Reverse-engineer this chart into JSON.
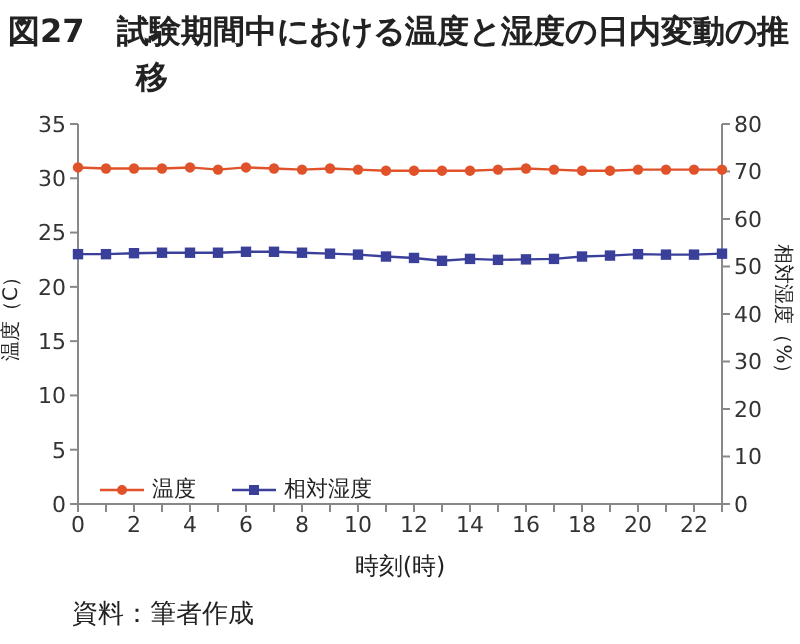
{
  "chart_data": {
    "type": "line",
    "title": "図27　試験期間中における温度と湿度の日内変動の推移",
    "xlabel": "時刻(時)",
    "ylabel": "温度（C）",
    "y2label": "相対湿度（%）",
    "categories": [
      "0",
      null,
      "2",
      null,
      "4",
      null,
      "6",
      null,
      "8",
      null,
      "10",
      null,
      "12",
      null,
      "14",
      null,
      "16",
      null,
      "18",
      null,
      "20",
      null,
      "22",
      null
    ],
    "series": [
      {
        "name": "温度",
        "color": "#e0522a",
        "marker": "circle",
        "values": [
          31.0,
          30.9,
          30.9,
          30.9,
          31.0,
          30.8,
          31.0,
          30.9,
          30.8,
          30.9,
          30.8,
          30.7,
          30.7,
          30.7,
          30.7,
          30.8,
          30.9,
          30.8,
          30.7,
          30.7,
          30.8,
          30.8,
          30.8,
          30.8
        ]
      },
      {
        "name": "相対湿度",
        "color": "#3a3f9a",
        "marker": "square",
        "axis": "y2",
        "values": [
          52.6,
          52.6,
          52.8,
          52.9,
          52.9,
          52.9,
          53.1,
          53.1,
          52.9,
          52.7,
          52.5,
          52.1,
          51.8,
          51.2,
          51.6,
          51.4,
          51.5,
          51.6,
          52.1,
          52.3,
          52.6,
          52.5,
          52.5,
          52.7
        ]
      }
    ],
    "ylim": [
      0,
      35
    ],
    "yticks": [
      0,
      5,
      10,
      15,
      20,
      25,
      30,
      35
    ],
    "y2lim": [
      0,
      80
    ],
    "y2ticks": [
      0,
      10,
      20,
      30,
      40,
      50,
      60,
      70,
      80
    ],
    "grid": false,
    "legend": "bottom left",
    "line_style": "solid",
    "annotations": [
      "資料：筆者作成"
    ]
  }
}
